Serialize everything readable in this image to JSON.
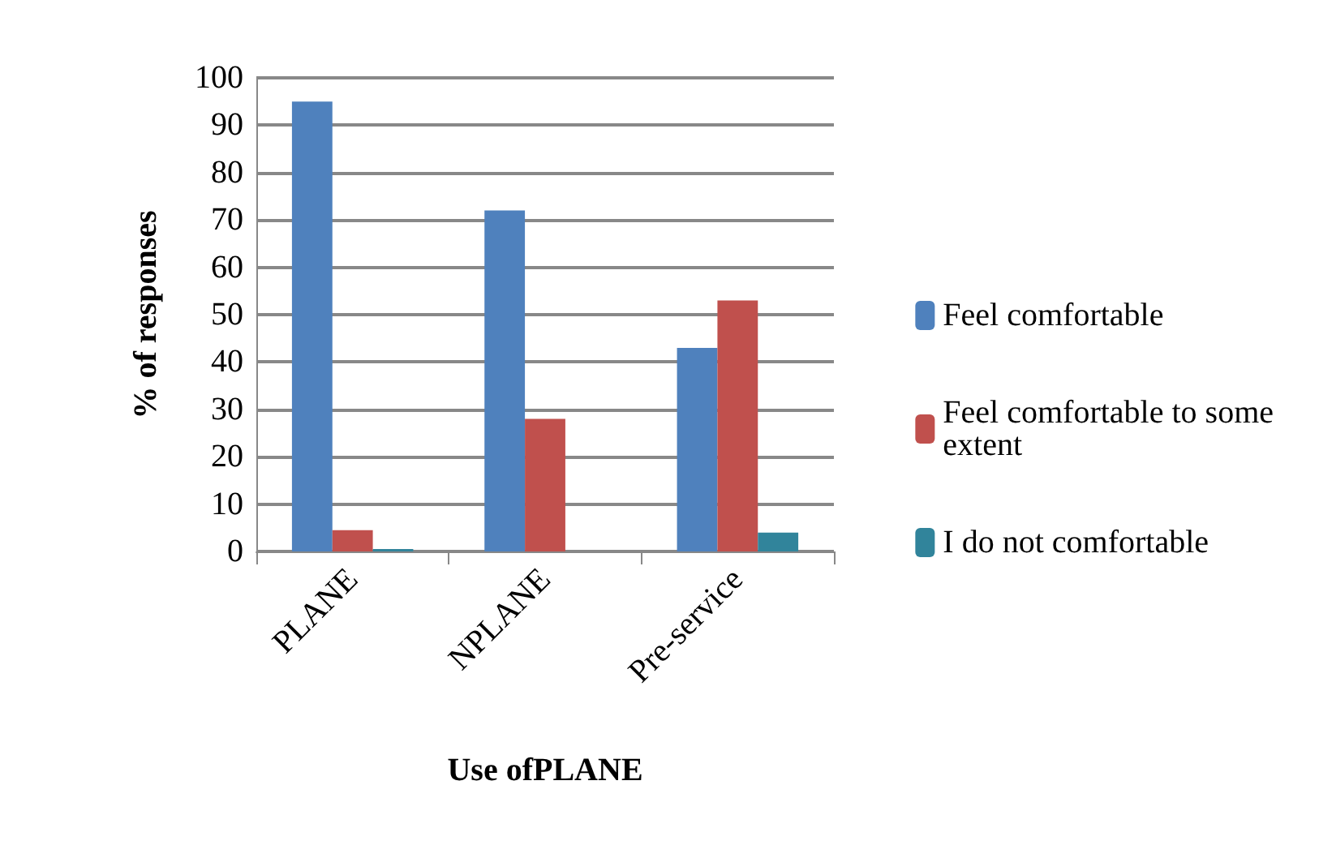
{
  "chart_data": {
    "type": "bar",
    "xlabel": "Use ofPLANE",
    "ylabel": "% of responses",
    "categories": [
      "PLANE",
      "NPLANE",
      "Pre-service"
    ],
    "series": [
      {
        "name": "Feel comfortable",
        "color": "#4f81bd",
        "values": [
          95,
          72,
          43
        ]
      },
      {
        "name": "Feel comfortable to some extent",
        "color": "#c0504d",
        "values": [
          4.5,
          28,
          53
        ]
      },
      {
        "name": "I do not comfortable",
        "color": "#31849b",
        "values": [
          0.5,
          0,
          4
        ]
      }
    ],
    "ylim": [
      0,
      100
    ],
    "yticks": [
      0,
      10,
      20,
      30,
      40,
      50,
      60,
      70,
      80,
      90,
      100
    ],
    "grid": "y",
    "legend": "right"
  }
}
